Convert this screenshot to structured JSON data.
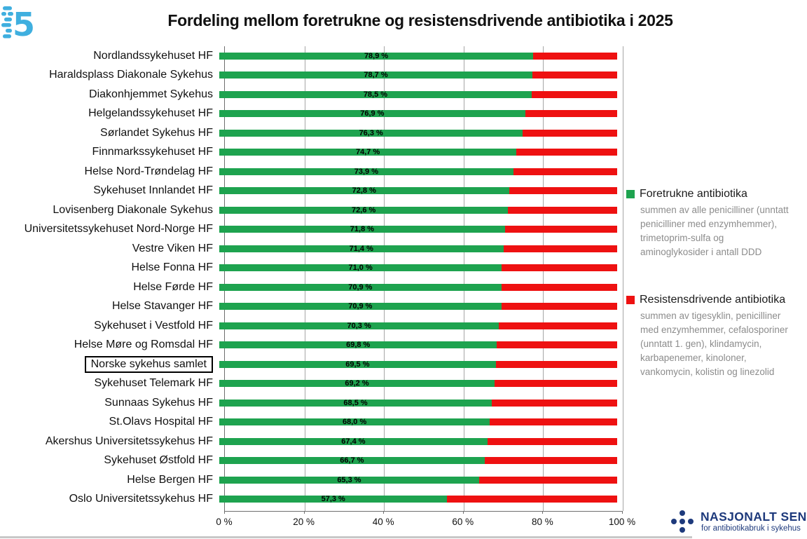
{
  "title": "Fordeling mellom foretrukne og resistensdrivende antibiotika i 2025",
  "chart_data": {
    "type": "bar",
    "orientation": "horizontal-stacked",
    "stack_total_percent": 100,
    "xlim": [
      0,
      100
    ],
    "grid": true,
    "legend_position": "right",
    "categories": [
      "Nordlandssykehuset HF",
      "Haraldsplass Diakonale Sykehus",
      "Diakonhjemmet Sykehus",
      "Helgelandssykehuset HF",
      "Sørlandet Sykehus HF",
      "Finnmarkssykehuset HF",
      "Helse Nord-Trøndelag HF",
      "Sykehuset Innlandet HF",
      "Lovisenberg Diakonale Sykehus",
      "Universitetssykehuset Nord-Norge HF",
      "Vestre Viken HF",
      "Helse Fonna HF",
      "Helse Førde HF",
      "Helse Stavanger HF",
      "Sykehuset i Vestfold HF",
      "Helse Møre og Romsdal HF",
      "Norske sykehus samlet",
      "Sykehuset Telemark HF",
      "Sunnaas Sykehus HF",
      "St.Olavs Hospital HF",
      "Akershus Universitetssykehus HF",
      "Sykehuset Østfold HF",
      "Helse Bergen HF",
      "Oslo Universitetssykehus HF"
    ],
    "series": [
      {
        "name": "Foretrukne antibiotika",
        "color": "#1ea34f",
        "values": [
          78.9,
          78.7,
          78.5,
          76.9,
          76.3,
          74.7,
          73.9,
          72.8,
          72.6,
          71.8,
          71.4,
          71.0,
          70.9,
          70.9,
          70.3,
          69.8,
          69.5,
          69.2,
          68.5,
          68.0,
          67.4,
          66.7,
          65.3,
          57.3
        ]
      },
      {
        "name": "Resistensdrivende antibiotika",
        "color": "#ee1111",
        "values": [
          21.1,
          21.3,
          21.5,
          23.1,
          23.7,
          25.3,
          26.1,
          27.2,
          27.4,
          28.2,
          28.6,
          29.0,
          29.1,
          29.1,
          29.7,
          30.2,
          30.5,
          30.8,
          31.5,
          32.0,
          32.6,
          33.3,
          34.7,
          42.7
        ]
      }
    ],
    "value_labels": [
      "78,9 %",
      "78,7 %",
      "78,5 %",
      "76,9 %",
      "76,3 %",
      "74,7 %",
      "73,9 %",
      "72,8 %",
      "72,6 %",
      "71,8 %",
      "71,4 %",
      "71,0 %",
      "70,9 %",
      "70,9 %",
      "70,3 %",
      "69,8 %",
      "69,5 %",
      "69,2 %",
      "68,5 %",
      "68,0 %",
      "67,4 %",
      "66,7 %",
      "65,3 %",
      "57,3 %"
    ],
    "highlighted_category": "Norske sykehus samlet",
    "x_ticks": [
      {
        "value": 0,
        "label": "0 %"
      },
      {
        "value": 20,
        "label": "20 %"
      },
      {
        "value": 40,
        "label": "40 %"
      },
      {
        "value": 60,
        "label": "60 %"
      },
      {
        "value": 80,
        "label": "80 %"
      },
      {
        "value": 100,
        "label": "100 %"
      }
    ]
  },
  "legend": {
    "items": [
      {
        "title": "Foretrukne antibiotika",
        "color": "#1ea34f",
        "description": "summen av alle penicilliner (unntatt penicilliner med enzymhemmer), trimetoprim-sulfa og aminoglykosider i antall DDD"
      },
      {
        "title": "Resistensdrivende antibiotika",
        "color": "#ee1111",
        "description": "summen av tigesyklin, penicilliner med enzymhemmer, cefalosporiner (unntatt 1. gen), klindamycin, karbapenemer, kinoloner, vankomycin, kolistin og linezolid"
      }
    ]
  },
  "footer_logo": {
    "name": "NASJONALT SENTER",
    "subtitle": "for antibiotikabruk i sykehus",
    "color": "#1e3a7c"
  },
  "colors": {
    "green": "#1ea34f",
    "red": "#ee1111",
    "navy": "#1e3a7c",
    "logo_blue": "#3fafdf",
    "gridline": "#a6a6a6",
    "axis": "#6e6e6e",
    "desc_gray": "#8c8c8c"
  }
}
